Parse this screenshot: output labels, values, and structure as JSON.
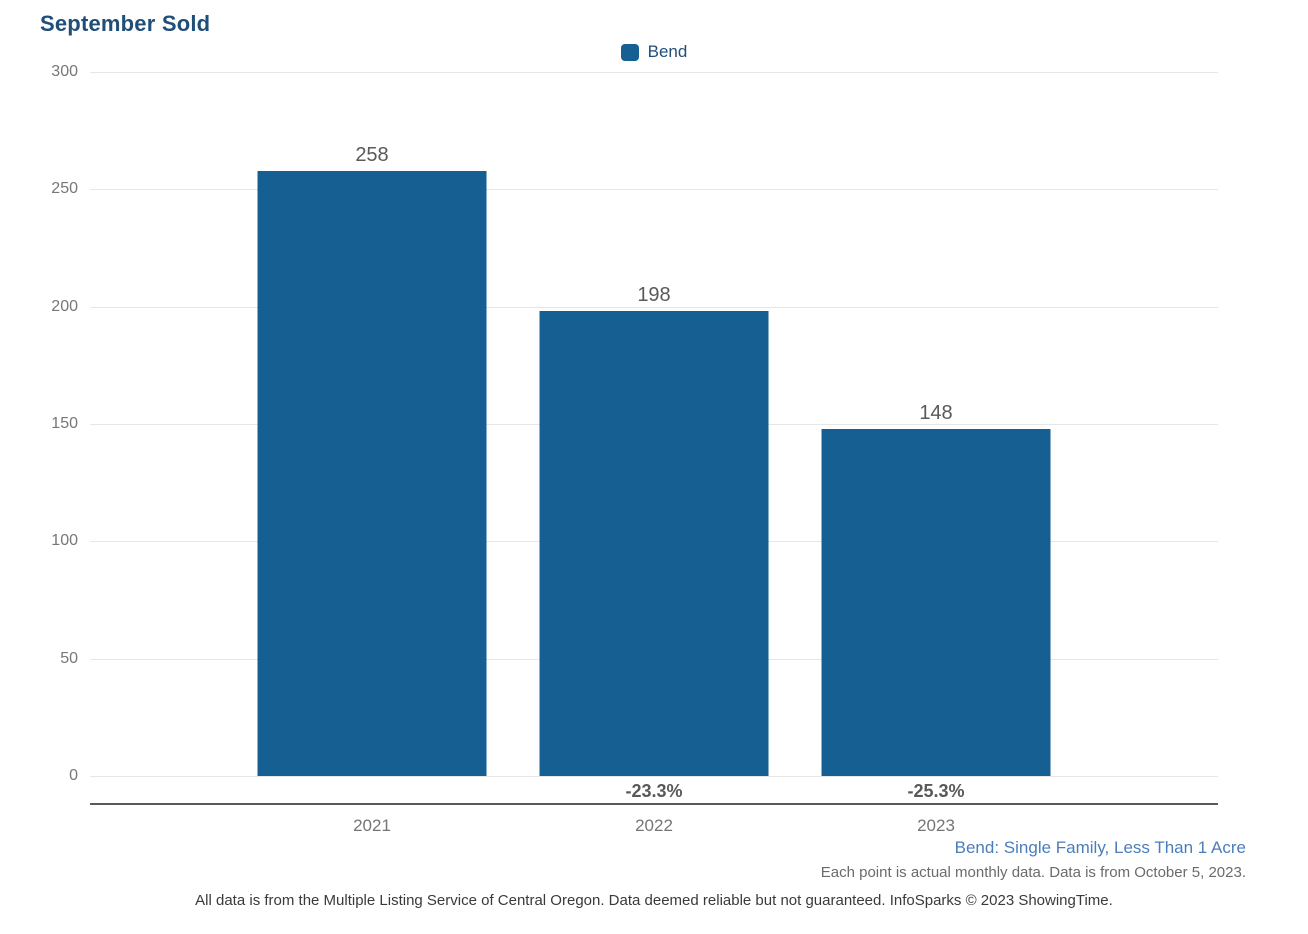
{
  "title": "September Sold",
  "legend": {
    "items": [
      {
        "label": "Bend",
        "color": "#155f92"
      }
    ]
  },
  "chart_data": {
    "type": "bar",
    "title": "September Sold",
    "categories": [
      "2021",
      "2022",
      "2023"
    ],
    "series": [
      {
        "name": "Bend",
        "values": [
          258,
          198,
          148
        ],
        "color": "#155f92"
      }
    ],
    "value_labels": [
      "258",
      "198",
      "148"
    ],
    "pct_change_labels": [
      "",
      "-23.3%",
      "-25.3%"
    ],
    "xlabel": "",
    "ylabel": "",
    "ylim": [
      0,
      300
    ],
    "yticks": [
      0,
      50,
      100,
      150,
      200,
      250,
      300
    ],
    "grid": true,
    "legend_position": "top-center"
  },
  "footnotes": {
    "series_description": "Bend: Single Family, Less Than 1 Acre",
    "data_note": "Each point is actual monthly data. Data is from October 5, 2023.",
    "disclaimer": "All data is from the Multiple Listing Service of Central Oregon. Data deemed reliable but not guaranteed. InfoSparks © 2023 ShowingTime."
  },
  "colors": {
    "bar": "#155f92",
    "title": "#1f4e79",
    "legend_label": "#1f4e79",
    "value_label": "#595959",
    "tick_label": "#777777",
    "pct_label": "#595959",
    "gridline": "#e6e6e6",
    "axis_line": "#595959",
    "footnote_series": "#4a7ebb",
    "footnote_note": "#6b6b6b",
    "disclaimer_text": "#3a3a3a"
  }
}
